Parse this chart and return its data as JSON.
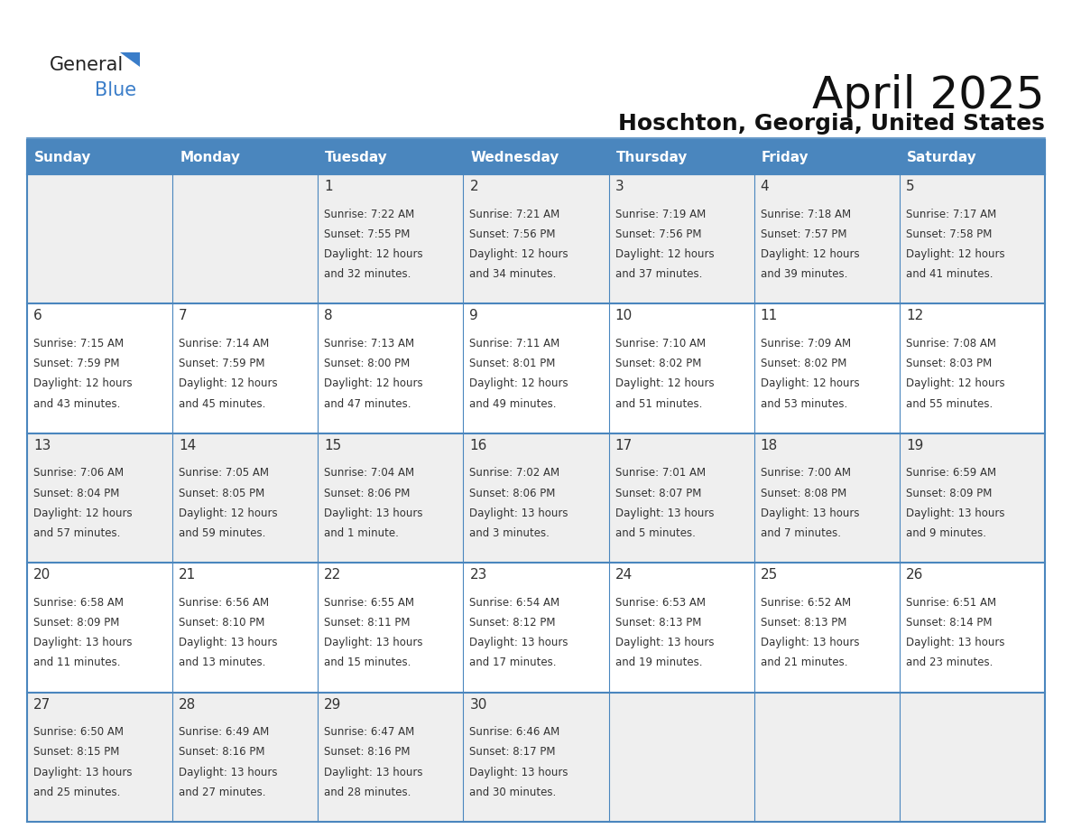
{
  "title": "April 2025",
  "subtitle": "Hoschton, Georgia, United States",
  "header_color": "#4A86BE",
  "header_text_color": "#FFFFFF",
  "day_names": [
    "Sunday",
    "Monday",
    "Tuesday",
    "Wednesday",
    "Thursday",
    "Friday",
    "Saturday"
  ],
  "row_colors": [
    "#EFEFEF",
    "#FFFFFF"
  ],
  "border_color": "#4A86BE",
  "text_color": "#333333",
  "days": [
    {
      "day": 1,
      "col": 2,
      "row": 0,
      "sunrise": "7:22 AM",
      "sunset": "7:55 PM",
      "daylight": "12 hours",
      "daylight2": "and 32 minutes."
    },
    {
      "day": 2,
      "col": 3,
      "row": 0,
      "sunrise": "7:21 AM",
      "sunset": "7:56 PM",
      "daylight": "12 hours",
      "daylight2": "and 34 minutes."
    },
    {
      "day": 3,
      "col": 4,
      "row": 0,
      "sunrise": "7:19 AM",
      "sunset": "7:56 PM",
      "daylight": "12 hours",
      "daylight2": "and 37 minutes."
    },
    {
      "day": 4,
      "col": 5,
      "row": 0,
      "sunrise": "7:18 AM",
      "sunset": "7:57 PM",
      "daylight": "12 hours",
      "daylight2": "and 39 minutes."
    },
    {
      "day": 5,
      "col": 6,
      "row": 0,
      "sunrise": "7:17 AM",
      "sunset": "7:58 PM",
      "daylight": "12 hours",
      "daylight2": "and 41 minutes."
    },
    {
      "day": 6,
      "col": 0,
      "row": 1,
      "sunrise": "7:15 AM",
      "sunset": "7:59 PM",
      "daylight": "12 hours",
      "daylight2": "and 43 minutes."
    },
    {
      "day": 7,
      "col": 1,
      "row": 1,
      "sunrise": "7:14 AM",
      "sunset": "7:59 PM",
      "daylight": "12 hours",
      "daylight2": "and 45 minutes."
    },
    {
      "day": 8,
      "col": 2,
      "row": 1,
      "sunrise": "7:13 AM",
      "sunset": "8:00 PM",
      "daylight": "12 hours",
      "daylight2": "and 47 minutes."
    },
    {
      "day": 9,
      "col": 3,
      "row": 1,
      "sunrise": "7:11 AM",
      "sunset": "8:01 PM",
      "daylight": "12 hours",
      "daylight2": "and 49 minutes."
    },
    {
      "day": 10,
      "col": 4,
      "row": 1,
      "sunrise": "7:10 AM",
      "sunset": "8:02 PM",
      "daylight": "12 hours",
      "daylight2": "and 51 minutes."
    },
    {
      "day": 11,
      "col": 5,
      "row": 1,
      "sunrise": "7:09 AM",
      "sunset": "8:02 PM",
      "daylight": "12 hours",
      "daylight2": "and 53 minutes."
    },
    {
      "day": 12,
      "col": 6,
      "row": 1,
      "sunrise": "7:08 AM",
      "sunset": "8:03 PM",
      "daylight": "12 hours",
      "daylight2": "and 55 minutes."
    },
    {
      "day": 13,
      "col": 0,
      "row": 2,
      "sunrise": "7:06 AM",
      "sunset": "8:04 PM",
      "daylight": "12 hours",
      "daylight2": "and 57 minutes."
    },
    {
      "day": 14,
      "col": 1,
      "row": 2,
      "sunrise": "7:05 AM",
      "sunset": "8:05 PM",
      "daylight": "12 hours",
      "daylight2": "and 59 minutes."
    },
    {
      "day": 15,
      "col": 2,
      "row": 2,
      "sunrise": "7:04 AM",
      "sunset": "8:06 PM",
      "daylight": "13 hours",
      "daylight2": "and 1 minute."
    },
    {
      "day": 16,
      "col": 3,
      "row": 2,
      "sunrise": "7:02 AM",
      "sunset": "8:06 PM",
      "daylight": "13 hours",
      "daylight2": "and 3 minutes."
    },
    {
      "day": 17,
      "col": 4,
      "row": 2,
      "sunrise": "7:01 AM",
      "sunset": "8:07 PM",
      "daylight": "13 hours",
      "daylight2": "and 5 minutes."
    },
    {
      "day": 18,
      "col": 5,
      "row": 2,
      "sunrise": "7:00 AM",
      "sunset": "8:08 PM",
      "daylight": "13 hours",
      "daylight2": "and 7 minutes."
    },
    {
      "day": 19,
      "col": 6,
      "row": 2,
      "sunrise": "6:59 AM",
      "sunset": "8:09 PM",
      "daylight": "13 hours",
      "daylight2": "and 9 minutes."
    },
    {
      "day": 20,
      "col": 0,
      "row": 3,
      "sunrise": "6:58 AM",
      "sunset": "8:09 PM",
      "daylight": "13 hours",
      "daylight2": "and 11 minutes."
    },
    {
      "day": 21,
      "col": 1,
      "row": 3,
      "sunrise": "6:56 AM",
      "sunset": "8:10 PM",
      "daylight": "13 hours",
      "daylight2": "and 13 minutes."
    },
    {
      "day": 22,
      "col": 2,
      "row": 3,
      "sunrise": "6:55 AM",
      "sunset": "8:11 PM",
      "daylight": "13 hours",
      "daylight2": "and 15 minutes."
    },
    {
      "day": 23,
      "col": 3,
      "row": 3,
      "sunrise": "6:54 AM",
      "sunset": "8:12 PM",
      "daylight": "13 hours",
      "daylight2": "and 17 minutes."
    },
    {
      "day": 24,
      "col": 4,
      "row": 3,
      "sunrise": "6:53 AM",
      "sunset": "8:13 PM",
      "daylight": "13 hours",
      "daylight2": "and 19 minutes."
    },
    {
      "day": 25,
      "col": 5,
      "row": 3,
      "sunrise": "6:52 AM",
      "sunset": "8:13 PM",
      "daylight": "13 hours",
      "daylight2": "and 21 minutes."
    },
    {
      "day": 26,
      "col": 6,
      "row": 3,
      "sunrise": "6:51 AM",
      "sunset": "8:14 PM",
      "daylight": "13 hours",
      "daylight2": "and 23 minutes."
    },
    {
      "day": 27,
      "col": 0,
      "row": 4,
      "sunrise": "6:50 AM",
      "sunset": "8:15 PM",
      "daylight": "13 hours",
      "daylight2": "and 25 minutes."
    },
    {
      "day": 28,
      "col": 1,
      "row": 4,
      "sunrise": "6:49 AM",
      "sunset": "8:16 PM",
      "daylight": "13 hours",
      "daylight2": "and 27 minutes."
    },
    {
      "day": 29,
      "col": 2,
      "row": 4,
      "sunrise": "6:47 AM",
      "sunset": "8:16 PM",
      "daylight": "13 hours",
      "daylight2": "and 28 minutes."
    },
    {
      "day": 30,
      "col": 3,
      "row": 4,
      "sunrise": "6:46 AM",
      "sunset": "8:17 PM",
      "daylight": "13 hours",
      "daylight2": "and 30 minutes."
    }
  ],
  "fig_bg": "#FFFFFF",
  "title_fontsize": 36,
  "subtitle_fontsize": 18,
  "header_fontsize": 11,
  "day_num_fontsize": 11,
  "cell_text_fontsize": 8.5
}
